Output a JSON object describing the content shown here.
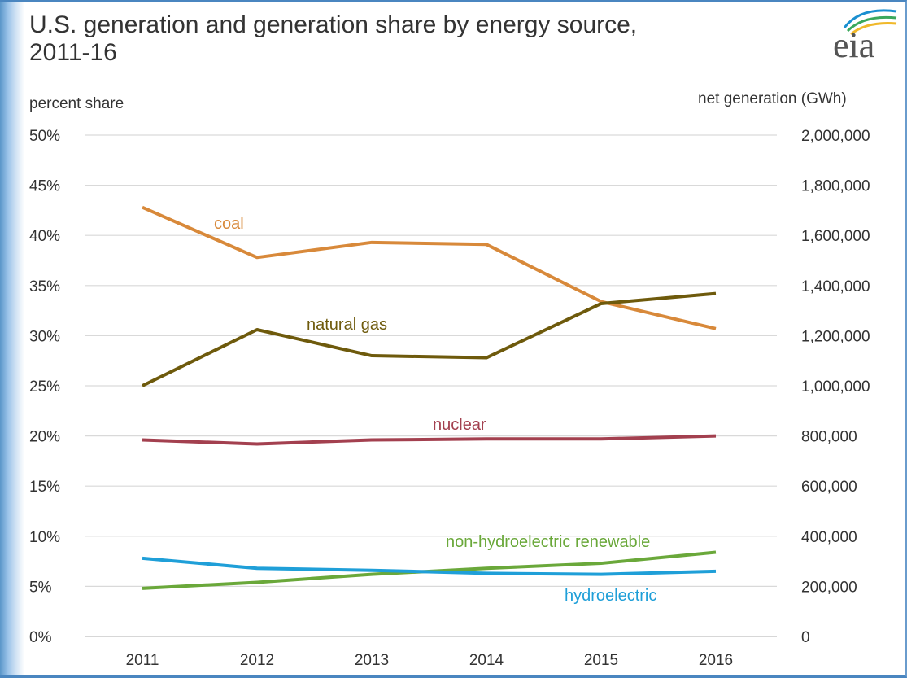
{
  "header": {
    "title_line1": "U.S. generation and generation share by energy source,",
    "title_line2": "2011-16",
    "logo_text": "eia"
  },
  "colors": {
    "coal": "#d8893a",
    "natural_gas": "#6e5a0c",
    "nuclear": "#a3404f",
    "non_hydro_renewable": "#6aa83a",
    "hydroelectric": "#1f9fd8",
    "grid": "#d9d9d9",
    "text": "#333333"
  },
  "chart_data": {
    "type": "line",
    "title": "U.S. generation and generation share by energy source, 2011-16",
    "x": [
      "2011",
      "2012",
      "2013",
      "2014",
      "2015",
      "2016"
    ],
    "ylabel_left": "percent share",
    "ylabel_right": "net generation (GWh)",
    "ylim_left": [
      0,
      50
    ],
    "ylim_right": [
      0,
      2000000
    ],
    "left_ticks": [
      "0%",
      "5%",
      "10%",
      "15%",
      "20%",
      "25%",
      "30%",
      "35%",
      "40%",
      "45%",
      "50%"
    ],
    "right_ticks": [
      "0",
      "200,000",
      "400,000",
      "600,000",
      "800,000",
      "1,000,000",
      "1,200,000",
      "1,400,000",
      "1,600,000",
      "1,800,000",
      "2,000,000"
    ],
    "grid": true,
    "series": [
      {
        "name": "coal",
        "color_key": "coal",
        "values": [
          42.8,
          37.8,
          39.3,
          39.1,
          33.4,
          30.7
        ]
      },
      {
        "name": "natural gas",
        "color_key": "natural_gas",
        "values": [
          25.0,
          30.6,
          28.0,
          27.8,
          33.2,
          34.2
        ]
      },
      {
        "name": "nuclear",
        "color_key": "nuclear",
        "values": [
          19.6,
          19.2,
          19.6,
          19.7,
          19.7,
          20.0
        ]
      },
      {
        "name": "non-hydroelectric renewable",
        "color_key": "non_hydro_renewable",
        "values": [
          4.8,
          5.4,
          6.2,
          6.8,
          7.3,
          8.4
        ]
      },
      {
        "name": "hydroelectric",
        "color_key": "hydroelectric",
        "values": [
          7.8,
          6.8,
          6.6,
          6.3,
          6.2,
          6.5
        ]
      }
    ]
  }
}
